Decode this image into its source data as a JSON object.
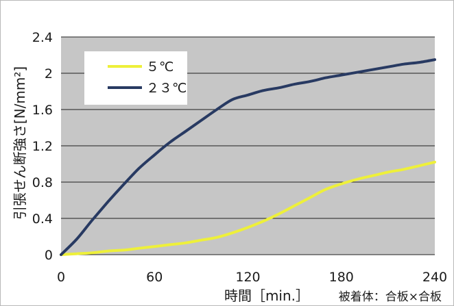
{
  "chart_data": {
    "type": "line",
    "title": "",
    "xlabel": "時間［min.］",
    "ylabel": "引張せん断強さ[N/mm²]",
    "note": "被着体：合板×合板",
    "xlim": [
      0,
      240
    ],
    "ylim": [
      0,
      2.4
    ],
    "x_ticks": [
      "0",
      "60",
      "120",
      "180",
      "240"
    ],
    "y_ticks": [
      "0",
      "0.4",
      "0.8",
      "1.2",
      "1.6",
      "2",
      "2.4"
    ],
    "grid": "horizontal",
    "legend_position": "top-left",
    "colors": {
      "plot_bg": "#c6c6c6",
      "grid": "#1e1e1e"
    },
    "series": [
      {
        "name": "５℃",
        "color": "#eef03a",
        "x": [
          0,
          10,
          20,
          30,
          40,
          50,
          60,
          70,
          80,
          90,
          100,
          110,
          120,
          130,
          140,
          150,
          160,
          170,
          180,
          190,
          200,
          210,
          220,
          230,
          240
        ],
        "y": [
          0.0,
          0.01,
          0.02,
          0.04,
          0.05,
          0.07,
          0.09,
          0.11,
          0.13,
          0.16,
          0.19,
          0.24,
          0.3,
          0.37,
          0.45,
          0.54,
          0.63,
          0.72,
          0.78,
          0.83,
          0.87,
          0.91,
          0.94,
          0.98,
          1.02
        ]
      },
      {
        "name": "２３℃",
        "color": "#283a62",
        "x": [
          0,
          10,
          20,
          30,
          40,
          50,
          60,
          70,
          80,
          90,
          100,
          110,
          120,
          130,
          140,
          150,
          160,
          170,
          180,
          190,
          200,
          210,
          220,
          230,
          240
        ],
        "y": [
          0.0,
          0.17,
          0.38,
          0.58,
          0.77,
          0.95,
          1.1,
          1.24,
          1.36,
          1.48,
          1.6,
          1.71,
          1.76,
          1.81,
          1.84,
          1.88,
          1.91,
          1.95,
          1.98,
          2.01,
          2.04,
          2.07,
          2.1,
          2.12,
          2.15
        ]
      }
    ]
  }
}
